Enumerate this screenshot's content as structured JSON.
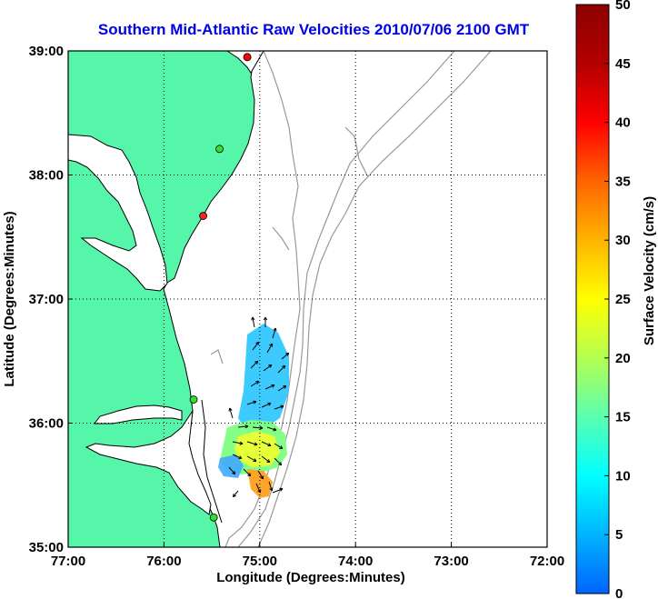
{
  "title": "Southern Mid-Atlantic Raw Velocities 2010/07/06 2100 GMT",
  "x_axis": {
    "label": "Longitude (Degrees:Minutes)",
    "ticks": [
      "77:00",
      "76:00",
      "75:00",
      "74:00",
      "73:00",
      "72:00"
    ]
  },
  "y_axis": {
    "label": "Latitude (Degrees:Minutes)",
    "ticks": [
      "39:00",
      "38:00",
      "37:00",
      "36:00",
      "35:00"
    ]
  },
  "colorbar": {
    "label": "Surface Velocity (cm/s)",
    "ticks": [
      "50",
      "45",
      "40",
      "35",
      "30",
      "25",
      "20",
      "15",
      "10",
      "5",
      "0"
    ],
    "min": 0,
    "max": 50,
    "colors": [
      "#0064ff",
      "#00b4ff",
      "#00ffff",
      "#5affb0",
      "#b4ff50",
      "#ffff00",
      "#ffb400",
      "#ff6400",
      "#ff0000",
      "#b40000",
      "#8c0000"
    ]
  },
  "map": {
    "lon_range": [
      -77,
      -72
    ],
    "lat_range": [
      35,
      39
    ],
    "land_color": "#55f5aa",
    "grid": "dotted",
    "stations": [
      {
        "lon": -75.13,
        "lat": 38.95,
        "color": "#ff0000"
      },
      {
        "lon": -75.13,
        "lat": 38.95,
        "color": "#ff0000"
      },
      {
        "lon": -75.42,
        "lat": 38.21,
        "color": "#33dd33"
      },
      {
        "lon": -75.59,
        "lat": 37.67,
        "color": "#ff2020"
      },
      {
        "lon": -75.69,
        "lat": 36.19,
        "color": "#33dd33"
      },
      {
        "lon": -75.48,
        "lat": 35.24,
        "color": "#33dd33"
      }
    ]
  }
}
